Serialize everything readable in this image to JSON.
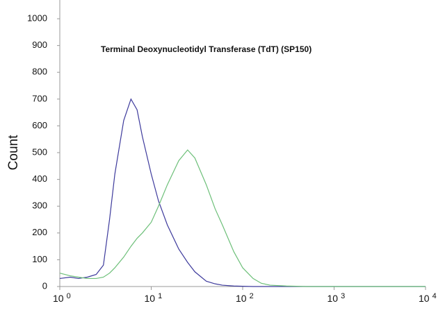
{
  "chart_data": {
    "type": "line",
    "title": "Terminal Deoxynucleotidyl Transferase (TdT)  (SP150)",
    "y_label": "Count",
    "xscale": "log",
    "x": [
      1,
      1.3,
      1.6,
      2,
      2.5,
      3,
      3.5,
      4,
      5,
      6,
      7,
      8,
      10,
      12,
      15,
      20,
      25,
      30,
      40,
      50,
      60,
      80,
      100,
      130,
      160,
      200,
      300,
      500,
      1000,
      10000
    ],
    "series": [
      {
        "color": "#3d3a9c",
        "values": [
          30,
          35,
          30,
          35,
          45,
          80,
          250,
          420,
          620,
          700,
          660,
          560,
          420,
          320,
          230,
          140,
          90,
          55,
          20,
          10,
          5,
          2,
          1,
          0,
          0,
          0,
          0,
          0,
          0,
          0
        ]
      },
      {
        "color": "#6cbf78",
        "values": [
          50,
          40,
          35,
          30,
          30,
          35,
          50,
          70,
          110,
          150,
          180,
          200,
          240,
          300,
          380,
          470,
          510,
          480,
          380,
          290,
          230,
          130,
          70,
          30,
          12,
          5,
          2,
          0,
          0,
          0
        ]
      }
    ],
    "xlim": [
      1,
      10000
    ],
    "xticks": [
      {
        "value": 1,
        "label": "10",
        "exponent": "0"
      },
      {
        "value": 10,
        "label": "10",
        "exponent": "1"
      },
      {
        "value": 100,
        "label": "10",
        "exponent": "2"
      },
      {
        "value": 1000,
        "label": "10",
        "exponent": "3"
      },
      {
        "value": 10000,
        "label": "10",
        "exponent": "4"
      }
    ],
    "ylim": [
      0,
      1070
    ],
    "yticks": [
      0,
      100,
      200,
      300,
      400,
      500,
      600,
      700,
      800,
      900,
      1000
    ]
  }
}
